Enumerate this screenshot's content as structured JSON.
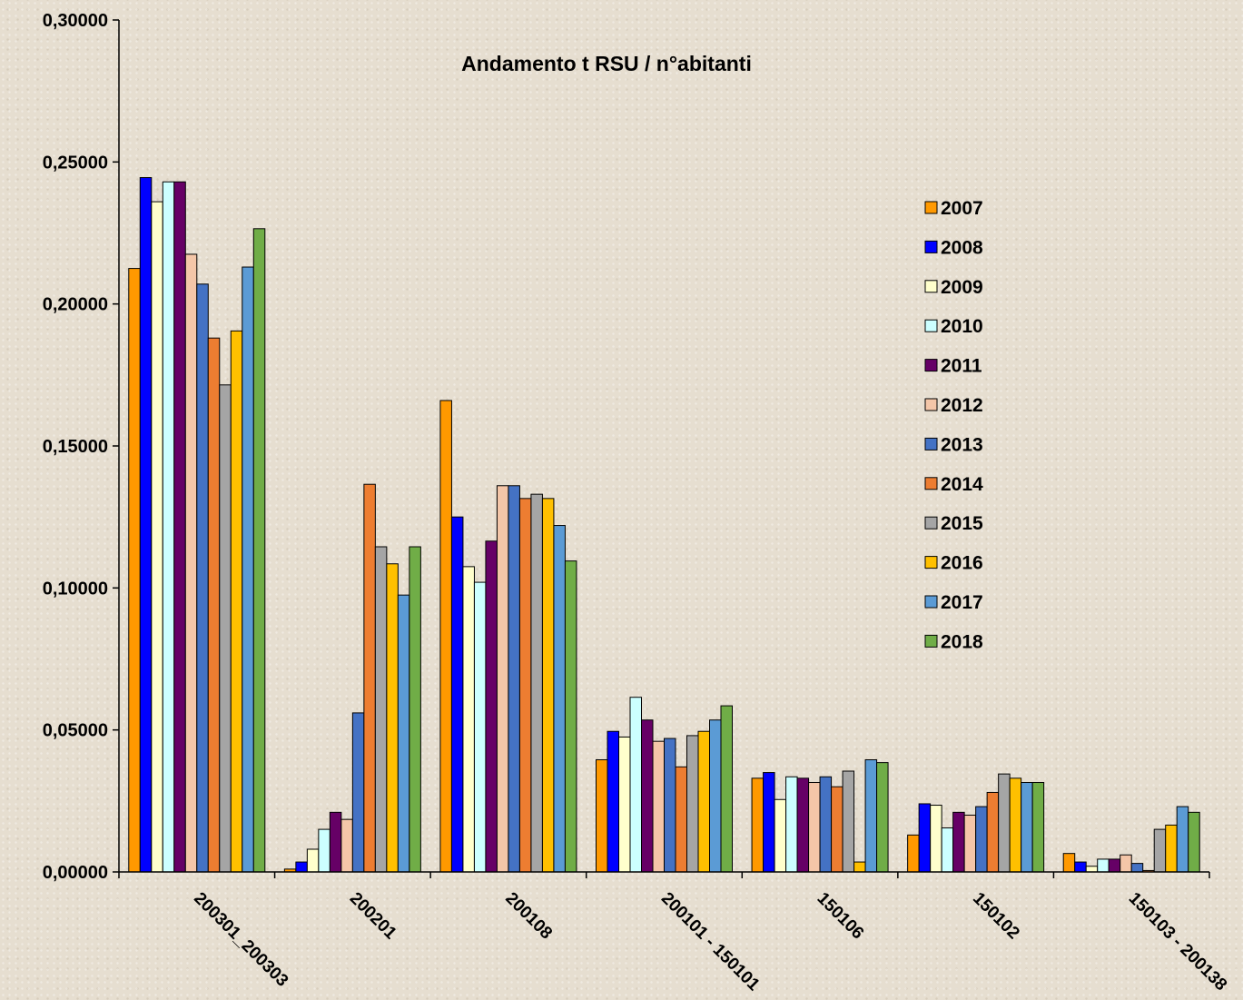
{
  "chart_data": {
    "type": "bar",
    "title": "Andamento t RSU / n°abitanti",
    "xlabel": "",
    "ylabel": "",
    "ylim": [
      0,
      0.3
    ],
    "yticks": [
      "0,00000",
      "0,05000",
      "0,10000",
      "0,15000",
      "0,20000",
      "0,25000",
      "0,30000"
    ],
    "grid": false,
    "legend_position": "right",
    "categories": [
      "200301_200303",
      "200201",
      "200108",
      "200101 - 150101",
      "150106",
      "150102",
      "150103 - 200138"
    ],
    "series": [
      {
        "name": "2007",
        "color": "#ff9900",
        "values": [
          0.2125,
          0.001,
          0.166,
          0.0395,
          0.033,
          0.013,
          0.0065
        ]
      },
      {
        "name": "2008",
        "color": "#0000ff",
        "values": [
          0.2445,
          0.0035,
          0.125,
          0.0495,
          0.035,
          0.024,
          0.0035
        ]
      },
      {
        "name": "2009",
        "color": "#ffffcc",
        "values": [
          0.236,
          0.008,
          0.1075,
          0.0475,
          0.0255,
          0.0235,
          0.002
        ]
      },
      {
        "name": "2010",
        "color": "#ccffff",
        "values": [
          0.243,
          0.015,
          0.102,
          0.0615,
          0.0335,
          0.0155,
          0.0045
        ]
      },
      {
        "name": "2011",
        "color": "#660066",
        "values": [
          0.243,
          0.021,
          0.1165,
          0.0535,
          0.033,
          0.021,
          0.0045
        ]
      },
      {
        "name": "2012",
        "color": "#f4c6a8",
        "values": [
          0.2175,
          0.0185,
          0.136,
          0.046,
          0.0315,
          0.02,
          0.006
        ]
      },
      {
        "name": "2013",
        "color": "#4472c4",
        "values": [
          0.207,
          0.056,
          0.136,
          0.047,
          0.0335,
          0.023,
          0.003
        ]
      },
      {
        "name": "2014",
        "color": "#ed7d31",
        "values": [
          0.188,
          0.1365,
          0.1315,
          0.037,
          0.03,
          0.028,
          0.0005
        ]
      },
      {
        "name": "2015",
        "color": "#a5a5a5",
        "values": [
          0.1715,
          0.1145,
          0.133,
          0.048,
          0.0355,
          0.0345,
          0.015
        ]
      },
      {
        "name": "2016",
        "color": "#ffc000",
        "values": [
          0.1905,
          0.1085,
          0.1315,
          0.0495,
          0.0035,
          0.033,
          0.0165
        ]
      },
      {
        "name": "2017",
        "color": "#5b9bd5",
        "values": [
          0.213,
          0.0975,
          0.122,
          0.0535,
          0.0395,
          0.0315,
          0.023
        ]
      },
      {
        "name": "2018",
        "color": "#70ad47",
        "values": [
          0.2265,
          0.1145,
          0.1095,
          0.0585,
          0.0385,
          0.0315,
          0.021
        ]
      }
    ]
  }
}
